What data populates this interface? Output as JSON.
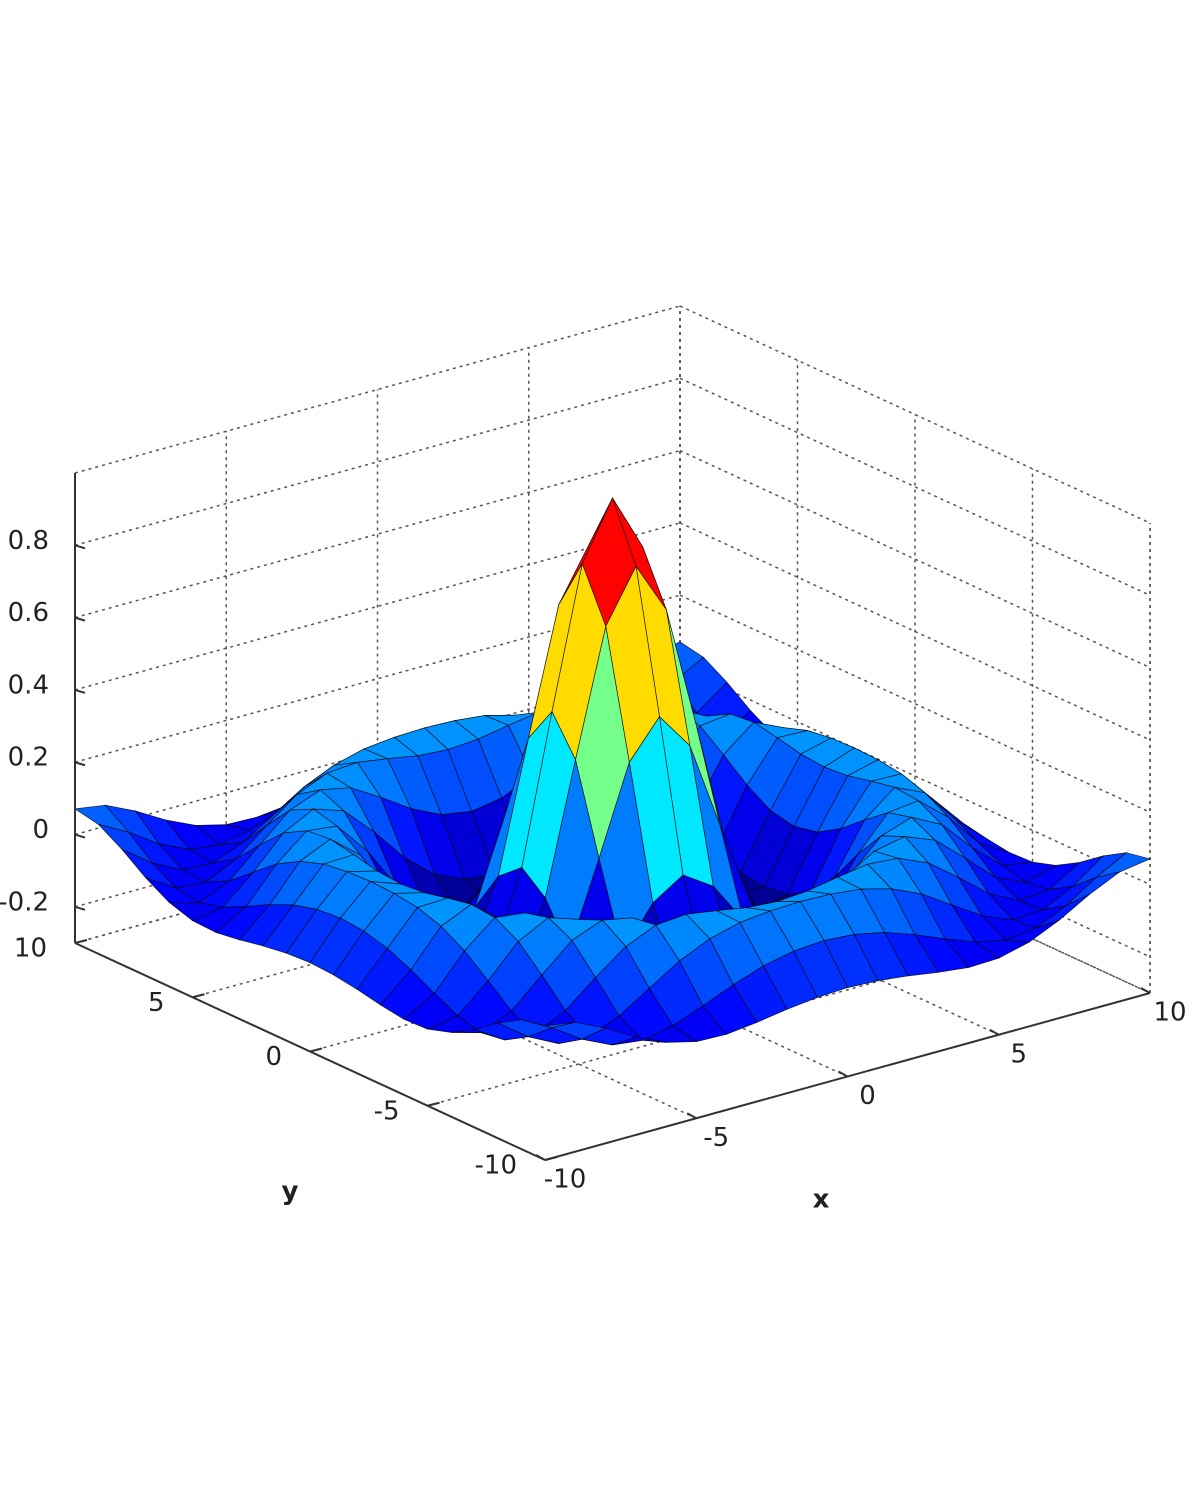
{
  "chart_data": {
    "type": "surface",
    "x": [
      -10,
      -9,
      -8,
      -7,
      -6,
      -5,
      -4,
      -3,
      -2,
      -1,
      0,
      1,
      2,
      3,
      4,
      5,
      6,
      7,
      8,
      9,
      10
    ],
    "y": [
      -10,
      -9,
      -8,
      -7,
      -6,
      -5,
      -4,
      -3,
      -2,
      -1,
      0,
      1,
      2,
      3,
      4,
      5,
      6,
      7,
      8,
      9,
      10
    ],
    "z": [
      [
        0.071,
        0.058,
        0.019,
        -0.029,
        -0.067,
        -0.088,
        -0.091,
        -0.081,
        -0.068,
        -0.058,
        -0.054,
        -0.058,
        -0.068,
        -0.081,
        -0.091,
        -0.088,
        -0.067,
        -0.029,
        0.019,
        0.058,
        0.071
      ],
      [
        0.058,
        0.013,
        -0.042,
        -0.081,
        -0.091,
        -0.074,
        -0.042,
        -0.007,
        0.022,
        0.04,
        0.046,
        0.04,
        0.022,
        -0.007,
        -0.042,
        -0.074,
        -0.091,
        -0.081,
        -0.042,
        0.013,
        0.058
      ],
      [
        0.019,
        -0.042,
        -0.084,
        -0.088,
        -0.054,
        -0.001,
        0.052,
        0.09,
        0.112,
        0.121,
        0.124,
        0.121,
        0.112,
        0.09,
        0.052,
        -0.001,
        -0.054,
        -0.088,
        -0.084,
        -0.042,
        0.019
      ],
      [
        -0.029,
        -0.081,
        -0.088,
        -0.046,
        0.022,
        0.085,
        0.121,
        0.128,
        0.115,
        0.1,
        0.094,
        0.1,
        0.115,
        0.128,
        0.121,
        0.085,
        0.022,
        -0.046,
        -0.088,
        -0.081,
        -0.029
      ],
      [
        -0.067,
        -0.091,
        -0.054,
        0.022,
        0.095,
        0.128,
        0.111,
        0.061,
        0.007,
        -0.033,
        -0.047,
        -0.033,
        0.007,
        0.061,
        0.111,
        0.128,
        0.095,
        0.022,
        -0.054,
        -0.091,
        -0.067
      ],
      [
        -0.088,
        -0.074,
        -0.001,
        0.085,
        0.128,
        0.1,
        0.019,
        -0.075,
        -0.145,
        -0.182,
        -0.192,
        -0.182,
        -0.145,
        -0.075,
        0.019,
        0.1,
        0.128,
        0.085,
        -0.001,
        -0.074,
        -0.088
      ],
      [
        -0.091,
        -0.042,
        0.052,
        0.121,
        0.111,
        0.019,
        -0.104,
        -0.192,
        -0.217,
        -0.202,
        -0.189,
        -0.202,
        -0.217,
        -0.192,
        -0.104,
        0.019,
        0.111,
        0.121,
        0.052,
        -0.042,
        -0.091
      ],
      [
        -0.081,
        -0.007,
        0.09,
        0.128,
        0.061,
        -0.075,
        -0.192,
        -0.21,
        -0.124,
        -0.007,
        0.047,
        -0.007,
        -0.124,
        -0.21,
        -0.192,
        -0.075,
        0.061,
        0.128,
        0.09,
        -0.007,
        -0.081
      ],
      [
        -0.068,
        0.022,
        0.112,
        0.115,
        0.007,
        -0.145,
        -0.217,
        -0.124,
        0.109,
        0.352,
        0.455,
        0.352,
        0.109,
        -0.124,
        -0.217,
        -0.145,
        0.007,
        0.115,
        0.112,
        0.022,
        -0.068
      ],
      [
        -0.058,
        0.04,
        0.121,
        0.1,
        -0.033,
        -0.182,
        -0.202,
        -0.007,
        0.352,
        0.698,
        0.841,
        0.698,
        0.352,
        -0.007,
        -0.202,
        -0.182,
        -0.033,
        0.1,
        0.121,
        0.04,
        -0.058
      ],
      [
        -0.054,
        0.046,
        0.124,
        0.094,
        -0.047,
        -0.192,
        -0.189,
        0.047,
        0.455,
        0.841,
        1,
        0.841,
        0.455,
        0.047,
        -0.189,
        -0.192,
        -0.047,
        0.094,
        0.124,
        0.046,
        -0.054
      ],
      [
        -0.058,
        0.04,
        0.121,
        0.1,
        -0.033,
        -0.182,
        -0.202,
        -0.007,
        0.352,
        0.698,
        0.841,
        0.698,
        0.352,
        -0.007,
        -0.202,
        -0.182,
        -0.033,
        0.1,
        0.121,
        0.04,
        -0.058
      ],
      [
        -0.068,
        0.022,
        0.112,
        0.115,
        0.007,
        -0.145,
        -0.217,
        -0.124,
        0.109,
        0.352,
        0.455,
        0.352,
        0.109,
        -0.124,
        -0.217,
        -0.145,
        0.007,
        0.115,
        0.112,
        0.022,
        -0.068
      ],
      [
        -0.081,
        -0.007,
        0.09,
        0.128,
        0.061,
        -0.075,
        -0.192,
        -0.21,
        -0.124,
        -0.007,
        0.047,
        -0.007,
        -0.124,
        -0.21,
        -0.192,
        -0.075,
        0.061,
        0.128,
        0.09,
        -0.007,
        -0.081
      ],
      [
        -0.091,
        -0.042,
        0.052,
        0.121,
        0.111,
        0.019,
        -0.104,
        -0.192,
        -0.217,
        -0.202,
        -0.189,
        -0.202,
        -0.217,
        -0.192,
        -0.104,
        0.019,
        0.111,
        0.121,
        0.052,
        -0.042,
        -0.091
      ],
      [
        -0.088,
        -0.074,
        -0.001,
        0.085,
        0.128,
        0.1,
        0.019,
        -0.075,
        -0.145,
        -0.182,
        -0.192,
        -0.182,
        -0.145,
        -0.075,
        0.019,
        0.1,
        0.128,
        0.085,
        -0.001,
        -0.074,
        -0.088
      ],
      [
        -0.067,
        -0.091,
        -0.054,
        0.022,
        0.095,
        0.128,
        0.111,
        0.061,
        0.007,
        -0.033,
        -0.047,
        -0.033,
        0.007,
        0.061,
        0.111,
        0.128,
        0.095,
        0.022,
        -0.054,
        -0.091,
        -0.067
      ],
      [
        -0.029,
        -0.081,
        -0.088,
        -0.046,
        0.022,
        0.085,
        0.121,
        0.128,
        0.115,
        0.1,
        0.094,
        0.1,
        0.115,
        0.128,
        0.121,
        0.085,
        0.022,
        -0.046,
        -0.088,
        -0.081,
        -0.029
      ],
      [
        0.019,
        -0.042,
        -0.084,
        -0.088,
        -0.054,
        -0.001,
        0.052,
        0.09,
        0.112,
        0.121,
        0.124,
        0.121,
        0.112,
        0.09,
        0.052,
        -0.001,
        -0.054,
        -0.088,
        -0.084,
        -0.042,
        0.019
      ],
      [
        0.058,
        0.013,
        -0.042,
        -0.081,
        -0.091,
        -0.074,
        -0.042,
        -0.007,
        0.022,
        0.04,
        0.046,
        0.04,
        0.022,
        -0.007,
        -0.042,
        -0.074,
        -0.091,
        -0.081,
        -0.042,
        0.013,
        0.058
      ],
      [
        0.071,
        0.058,
        0.019,
        -0.029,
        -0.067,
        -0.088,
        -0.091,
        -0.081,
        -0.068,
        -0.058,
        -0.054,
        -0.058,
        -0.068,
        -0.081,
        -0.091,
        -0.088,
        -0.067,
        -0.029,
        0.019,
        0.058,
        0.071
      ]
    ],
    "xlim": [
      -10,
      10
    ],
    "ylim": [
      -10,
      10
    ],
    "zlim": [
      -0.3,
      1
    ],
    "xticks": [
      -10,
      -5,
      0,
      5,
      10
    ],
    "yticks": [
      -10,
      -5,
      0,
      5,
      10
    ],
    "zticks": [
      -0.2,
      0,
      0.2,
      0.4,
      0.6,
      0.8
    ],
    "xlabel": "x",
    "ylabel": "y",
    "grid": true,
    "colormap": "jet"
  }
}
